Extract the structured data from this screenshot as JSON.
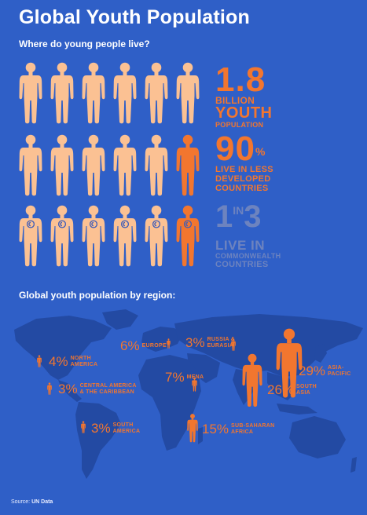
{
  "header": {
    "title": "Global Youth Population",
    "subtitle": "Where do young people live?"
  },
  "colors": {
    "background": "#2f5fc7",
    "accent": "#f2762f",
    "figure_light": "#fbc193",
    "muted_stat": "#6d83bf",
    "map_land": "#234aa3"
  },
  "stats": {
    "youth_total": {
      "value": "1.8",
      "line1": "BILLION",
      "line2": "YOUTH",
      "line3": "POPULATION"
    },
    "less_developed": {
      "value": "90",
      "unit": "%",
      "line1": "LIVE IN LESS",
      "line2": "DEVELOPED",
      "line3": "COUNTRIES"
    },
    "commonwealth": {
      "num": "1",
      "in": "IN",
      "den": "3",
      "line1": "LIVE IN",
      "line2": "COMMONWEALTH",
      "line3": "COUNTRIES"
    }
  },
  "icons": [
    "person-figure-icon",
    "commonwealth-globe-icon"
  ],
  "regions_title": "Global youth population by region:",
  "regions": [
    {
      "key": "north_america",
      "pct": "4%",
      "line1": "NORTH",
      "line2": "AMERICA"
    },
    {
      "key": "europe",
      "pct": "6%",
      "line1": "EUROPE",
      "line2": ""
    },
    {
      "key": "russia",
      "pct": "3%",
      "line1": "RUSSIA &",
      "line2": "EURASIA"
    },
    {
      "key": "central_america",
      "pct": "3%",
      "line1": "CENTRAL AMERICA",
      "line2": "& THE CARIBBEAN"
    },
    {
      "key": "mena",
      "pct": "7%",
      "line1": "MENA",
      "line2": ""
    },
    {
      "key": "asia_pacific",
      "pct": "29%",
      "line1": "ASIA-",
      "line2": "PACIFIC"
    },
    {
      "key": "south_asia",
      "pct": "26%",
      "line1": "SOUTH",
      "line2": "ASIA"
    },
    {
      "key": "south_america",
      "pct": "3%",
      "line1": "SOUTH",
      "line2": "AMERICA"
    },
    {
      "key": "ssa",
      "pct": "15%",
      "line1": "SUB-SAHARAN",
      "line2": "AFRICA"
    }
  ],
  "source": {
    "label": "Source: ",
    "value": "UN Data"
  }
}
